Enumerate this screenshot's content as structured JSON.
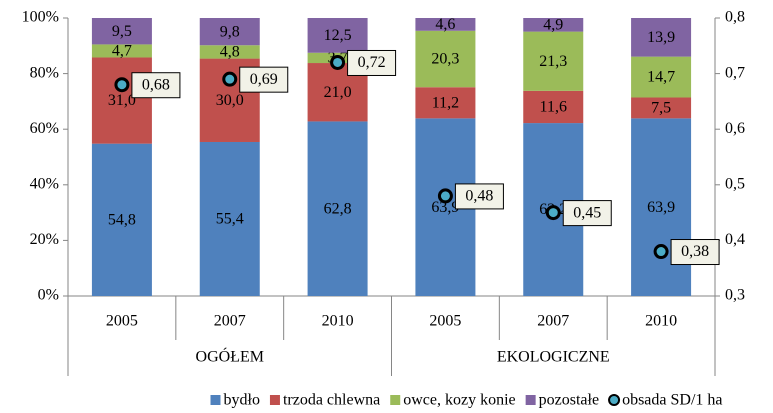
{
  "chart_data": {
    "type": "stacked-bar",
    "groups": [
      {
        "label": "OGÓŁEM",
        "categories": [
          "2005",
          "2007",
          "2010"
        ]
      },
      {
        "label": "EKOLOGICZNE",
        "categories": [
          "2005",
          "2007",
          "2010"
        ]
      }
    ],
    "series": [
      {
        "name": "bydło",
        "color": "#4f81bd",
        "values": [
          54.8,
          55.4,
          62.8,
          63.9,
          62.2,
          63.9
        ],
        "value_labels": [
          "54,8",
          "55,4",
          "62,8",
          "63,9",
          "62,2",
          "63,9"
        ]
      },
      {
        "name": "trzoda chlewna",
        "color": "#c0504d",
        "values": [
          31.0,
          30.0,
          21.0,
          11.2,
          11.6,
          7.5
        ],
        "value_labels": [
          "31,0",
          "30,0",
          "21,0",
          "11,2",
          "11,6",
          "7,5"
        ]
      },
      {
        "name": "owce, kozy konie",
        "color": "#9bbb59",
        "values": [
          4.7,
          4.8,
          3.7,
          20.3,
          21.3,
          14.7
        ],
        "value_labels": [
          "4,7",
          "4,8",
          "3,7",
          "20,3",
          "21,3",
          "14,7"
        ]
      },
      {
        "name": "pozostałe",
        "color": "#8064a2",
        "values": [
          9.5,
          9.8,
          12.5,
          4.6,
          4.9,
          13.9
        ],
        "value_labels": [
          "9,5",
          "9,8",
          "12,5",
          "4,6",
          "4,9",
          "13,9"
        ]
      },
      {
        "name": "obsada SD/1 ha",
        "type": "scatter",
        "axis": "y2",
        "color": "#4bacc6",
        "values": [
          0.68,
          0.69,
          0.72,
          0.48,
          0.45,
          0.38
        ],
        "value_labels": [
          "0,68",
          "0,69",
          "0,72",
          "0,48",
          "0,45",
          "0,38"
        ]
      }
    ],
    "ylim": [
      0,
      100
    ],
    "yticks": [
      {
        "value": 0,
        "label": "0%"
      },
      {
        "value": 20,
        "label": "20%"
      },
      {
        "value": 40,
        "label": "40%"
      },
      {
        "value": 60,
        "label": "60%"
      },
      {
        "value": 80,
        "label": "80%"
      },
      {
        "value": 100,
        "label": "100%"
      }
    ],
    "y2lim": [
      0.3,
      0.8
    ],
    "y2ticks": [
      {
        "value": 0.3,
        "label": "0,3"
      },
      {
        "value": 0.4,
        "label": "0,4"
      },
      {
        "value": 0.5,
        "label": "0,5"
      },
      {
        "value": 0.6,
        "label": "0,6"
      },
      {
        "value": 0.7,
        "label": "0,7"
      },
      {
        "value": 0.8,
        "label": "0,8"
      }
    ],
    "grid": false,
    "legend": "bottom"
  }
}
